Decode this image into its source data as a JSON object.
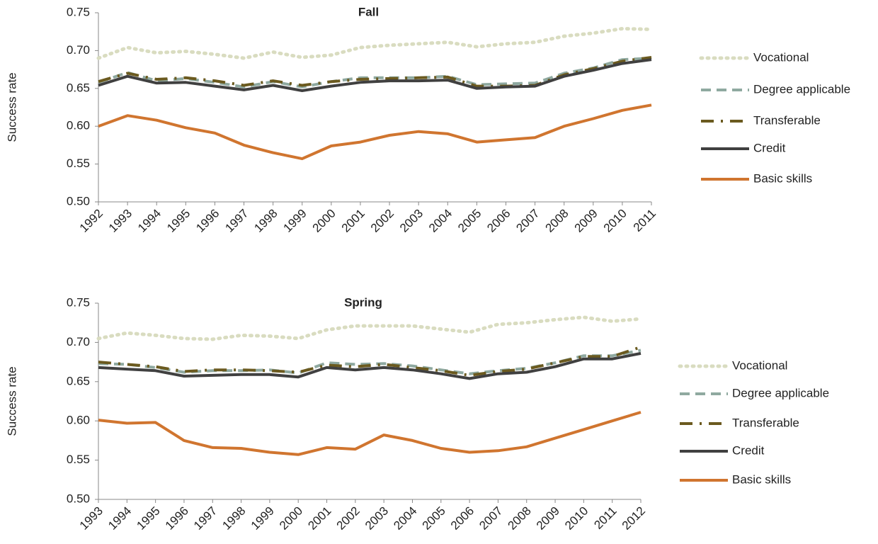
{
  "chart_data": [
    {
      "type": "line",
      "title": "Fall",
      "y_label": "Success rate",
      "legend": "right",
      "categories": [
        "1992",
        "1993",
        "1994",
        "1995",
        "1996",
        "1997",
        "1998",
        "1999",
        "2000",
        "2001",
        "2002",
        "2003",
        "2004",
        "2005",
        "2006",
        "2007",
        "2008",
        "2009",
        "2010",
        "2011"
      ],
      "ylim": [
        0.5,
        0.75
      ],
      "yticks": [
        {
          "value": 0.5,
          "label": "0.50"
        },
        0.55,
        {
          "value": 0.6,
          "label": "0.60"
        },
        0.65,
        {
          "value": 0.7,
          "label": "0.70"
        },
        0.75
      ],
      "series": [
        {
          "name": "Vocational",
          "color": "#d9dcc0",
          "line_style": "dotted",
          "values": [
            0.69,
            0.704,
            0.697,
            0.699,
            0.695,
            0.69,
            0.698,
            0.691,
            0.694,
            0.704,
            0.707,
            0.709,
            0.711,
            0.705,
            0.709,
            0.711,
            0.719,
            0.723,
            0.729,
            0.728
          ]
        },
        {
          "name": "Degree applicable",
          "color": "#8fa9a0",
          "line_style": "dashed",
          "values": [
            0.658,
            0.671,
            0.66,
            0.663,
            0.658,
            0.652,
            0.659,
            0.652,
            0.659,
            0.664,
            0.664,
            0.664,
            0.666,
            0.655,
            0.656,
            0.657,
            0.67,
            0.677,
            0.688,
            0.69
          ]
        },
        {
          "name": "Transferable",
          "color": "#6b5a1f",
          "line_style": "dash-dot",
          "values": [
            0.659,
            0.67,
            0.662,
            0.664,
            0.66,
            0.654,
            0.66,
            0.654,
            0.659,
            0.662,
            0.663,
            0.664,
            0.665,
            0.653,
            0.653,
            0.654,
            0.668,
            0.676,
            0.686,
            0.691
          ]
        },
        {
          "name": "Credit",
          "color": "#404040",
          "line_style": "solid",
          "values": [
            0.654,
            0.666,
            0.657,
            0.658,
            0.653,
            0.648,
            0.654,
            0.647,
            0.653,
            0.658,
            0.66,
            0.66,
            0.661,
            0.65,
            0.652,
            0.653,
            0.666,
            0.674,
            0.683,
            0.688
          ]
        },
        {
          "name": "Basic skills",
          "color": "#d0752f",
          "line_style": "solid",
          "values": [
            0.6,
            0.614,
            0.608,
            0.598,
            0.591,
            0.575,
            0.565,
            0.557,
            0.574,
            0.579,
            0.588,
            0.593,
            0.59,
            0.579,
            0.582,
            0.585,
            0.6,
            0.61,
            0.621,
            0.628
          ]
        }
      ]
    },
    {
      "type": "line",
      "title": "Spring",
      "y_label": "Success rate",
      "legend": "right",
      "categories": [
        "1993",
        "1994",
        "1995",
        "1996",
        "1997",
        "1998",
        "1999",
        "2000",
        "2001",
        "2002",
        "2003",
        "2004",
        "2005",
        "2006",
        "2007",
        "2008",
        "2009",
        "2010",
        "2011",
        "2012"
      ],
      "ylim": [
        0.5,
        0.75
      ],
      "yticks": [
        {
          "value": 0.5,
          "label": "0.50"
        },
        0.55,
        {
          "value": 0.6,
          "label": "0.60"
        },
        0.65,
        {
          "value": 0.7,
          "label": "0.70"
        },
        0.75
      ],
      "series": [
        {
          "name": "Vocational",
          "color": "#d9dcc0",
          "line_style": "dotted",
          "values": [
            0.705,
            0.712,
            0.709,
            0.705,
            0.704,
            0.709,
            0.708,
            0.705,
            0.716,
            0.721,
            0.721,
            0.721,
            0.717,
            0.713,
            0.723,
            0.725,
            0.729,
            0.732,
            0.727,
            0.73
          ]
        },
        {
          "name": "Degree applicable",
          "color": "#8fa9a0",
          "line_style": "dashed",
          "values": [
            0.673,
            0.672,
            0.668,
            0.662,
            0.664,
            0.664,
            0.665,
            0.661,
            0.674,
            0.672,
            0.673,
            0.67,
            0.665,
            0.66,
            0.664,
            0.667,
            0.674,
            0.683,
            0.683,
            0.69
          ]
        },
        {
          "name": "Transferable",
          "color": "#6b5a1f",
          "line_style": "dash-dot",
          "values": [
            0.675,
            0.672,
            0.669,
            0.663,
            0.665,
            0.665,
            0.664,
            0.662,
            0.671,
            0.669,
            0.672,
            0.668,
            0.664,
            0.658,
            0.663,
            0.666,
            0.674,
            0.682,
            0.682,
            0.694
          ]
        },
        {
          "name": "Credit",
          "color": "#404040",
          "line_style": "solid",
          "values": [
            0.668,
            0.666,
            0.664,
            0.657,
            0.658,
            0.659,
            0.659,
            0.656,
            0.668,
            0.665,
            0.668,
            0.665,
            0.66,
            0.654,
            0.66,
            0.662,
            0.669,
            0.679,
            0.679,
            0.686
          ]
        },
        {
          "name": "Basic skills",
          "color": "#d0752f",
          "line_style": "solid",
          "values": [
            0.601,
            0.597,
            0.598,
            0.575,
            0.566,
            0.565,
            0.56,
            0.557,
            0.566,
            0.564,
            0.582,
            0.575,
            0.565,
            0.56,
            0.562,
            0.567,
            0.578,
            0.589,
            0.6,
            0.611
          ]
        }
      ]
    }
  ]
}
